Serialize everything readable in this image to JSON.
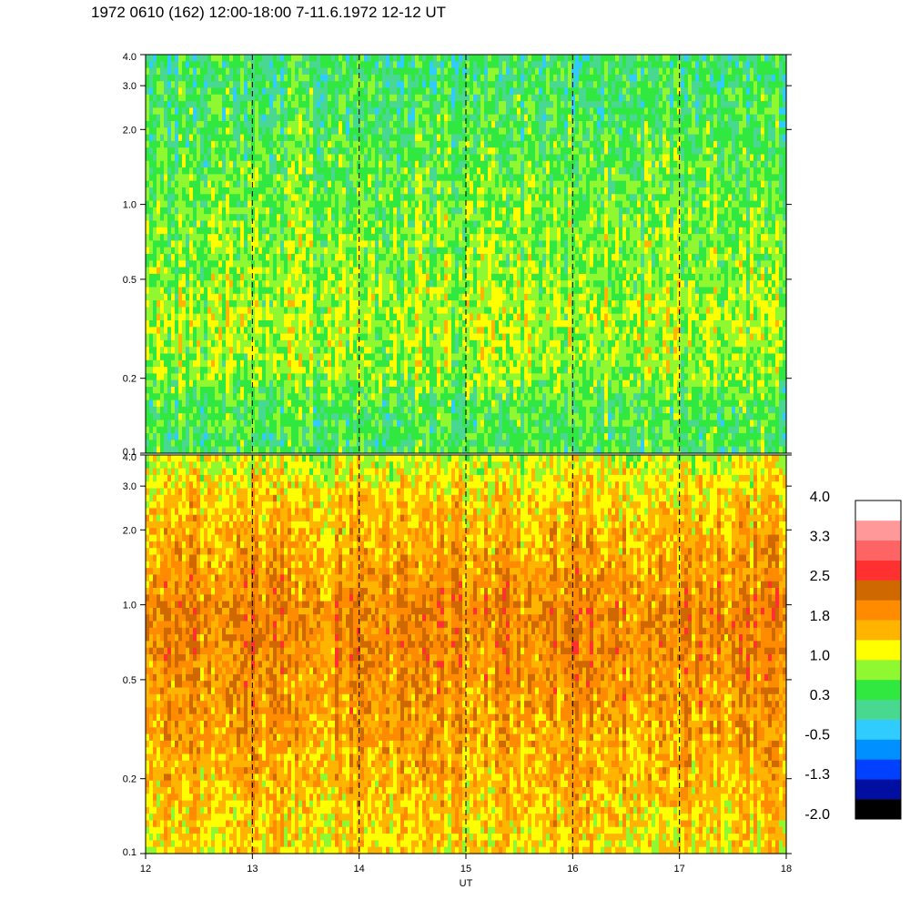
{
  "page": {
    "title": "1972 0610 (162) 12:00-18:00 7-11.6.1972  12-12 UT"
  },
  "chart_data": {
    "type": "heatmap",
    "title": "1972 0610 (162) 12:00-18:00 7-11.6.1972  12-12 UT",
    "xlabel": "UT",
    "x_range": [
      12,
      18
    ],
    "x_ticks": [
      "12",
      "13",
      "14",
      "15",
      "16",
      "17",
      "18"
    ],
    "dashed_vertical_lines_at": [
      13,
      14,
      15,
      16,
      17
    ],
    "grid": false,
    "y_scale": "log",
    "panels": [
      {
        "id": "upper",
        "y_range": [
          0.1,
          4.0
        ],
        "y_ticks": [
          {
            "value": 0.1,
            "label": "0.1"
          },
          {
            "value": 0.2,
            "label": "0.2"
          },
          {
            "value": 0.5,
            "label": "0.5"
          },
          {
            "value": 1.0,
            "label": "1.0"
          },
          {
            "value": 2.0,
            "label": "2.0"
          },
          {
            "value": 3.0,
            "label": "3.0"
          },
          {
            "value": 4.0,
            "label": "4.0"
          }
        ],
        "level_profile": [
          {
            "y": 0.1,
            "level": 0.4
          },
          {
            "y": 0.15,
            "level": 0.45
          },
          {
            "y": 0.22,
            "level": 0.8
          },
          {
            "y": 0.35,
            "level": 0.9
          },
          {
            "y": 0.6,
            "level": 0.75
          },
          {
            "y": 1.0,
            "level": 0.65
          },
          {
            "y": 2.0,
            "level": 0.45
          },
          {
            "y": 4.0,
            "level": 0.25
          }
        ]
      },
      {
        "id": "lower",
        "y_range": [
          0.1,
          4.0
        ],
        "y_ticks": [
          {
            "value": 0.1,
            "label": "0.1"
          },
          {
            "value": 0.2,
            "label": "0.2"
          },
          {
            "value": 0.5,
            "label": "0.5"
          },
          {
            "value": 1.0,
            "label": "1.0"
          },
          {
            "value": 2.0,
            "label": "2.0"
          },
          {
            "value": 3.0,
            "label": "3.0"
          },
          {
            "value": 4.0,
            "label": "4.0"
          }
        ],
        "level_profile": [
          {
            "y": 0.1,
            "level": 1.3
          },
          {
            "y": 0.2,
            "level": 1.6
          },
          {
            "y": 0.5,
            "level": 1.9
          },
          {
            "y": 0.9,
            "level": 2.05
          },
          {
            "y": 1.5,
            "level": 1.75
          },
          {
            "y": 2.5,
            "level": 1.5
          },
          {
            "y": 4.0,
            "level": 1.0
          }
        ]
      }
    ],
    "colorbar": {
      "min": -2.0,
      "max": 4.0,
      "labels": [
        "4.0",
        "3.3",
        "2.5",
        "1.8",
        "1.0",
        "0.3",
        "-0.5",
        "-1.3",
        "-2.0"
      ],
      "colors": [
        "#000000",
        "#000fa0",
        "#0040ff",
        "#0090ff",
        "#30ccff",
        "#48d890",
        "#30e840",
        "#90f830",
        "#ffff00",
        "#ffb400",
        "#ff8c00",
        "#d06800",
        "#ff3030",
        "#ff6464",
        "#ff9898",
        "#ffffff"
      ]
    }
  }
}
